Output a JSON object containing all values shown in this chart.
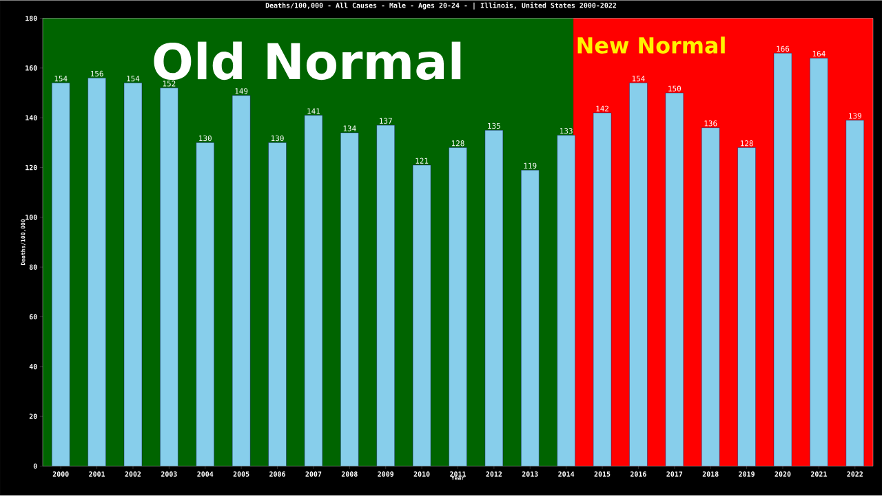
{
  "chart_data": {
    "type": "bar",
    "title": "Deaths/100,000 - All Causes - Male - Ages 20-24 -  | Illinois, United States 2000-2022",
    "xlabel": "Year",
    "ylabel": "Deaths/100,000",
    "x": [
      2000,
      2001,
      2002,
      2003,
      2004,
      2005,
      2006,
      2007,
      2008,
      2009,
      2010,
      2011,
      2012,
      2013,
      2014,
      2015,
      2016,
      2017,
      2018,
      2019,
      2020,
      2021,
      2022
    ],
    "values": [
      154,
      156,
      154,
      152,
      130,
      149,
      130,
      141,
      134,
      137,
      121,
      128,
      135,
      119,
      133,
      142,
      154,
      150,
      136,
      128,
      166,
      164,
      139
    ],
    "color": "#87ceeb",
    "data_labels": true,
    "xlim": [
      1999.5,
      2022.5
    ],
    "xticks": [
      2000,
      2001,
      2002,
      2003,
      2004,
      2005,
      2006,
      2007,
      2008,
      2009,
      2010,
      2011,
      2012,
      2013,
      2014,
      2015,
      2016,
      2017,
      2018,
      2019,
      2020,
      2021,
      2022
    ],
    "ylim": [
      0,
      180
    ],
    "yticks": [
      0,
      20,
      40,
      60,
      80,
      100,
      120,
      140,
      160,
      180
    ],
    "bands": [
      {
        "axis": "x",
        "from": 1999.5,
        "to": 2014.2,
        "label": "Old Normal",
        "color": "#006400"
      },
      {
        "axis": "x",
        "from": 2014.2,
        "to": 2022.5,
        "label": "New Normal",
        "color": "#ff0000"
      }
    ],
    "grid": false
  }
}
